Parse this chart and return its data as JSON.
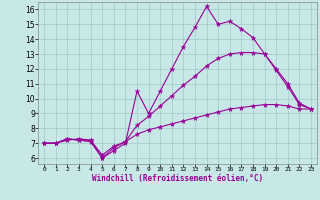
{
  "xlabel": "Windchill (Refroidissement éolien,°C)",
  "background_color": "#c8e8e8",
  "grid_color": "#a0c8c8",
  "line_color": "#990099",
  "x_ticks": [
    0,
    1,
    2,
    3,
    4,
    5,
    6,
    7,
    8,
    9,
    10,
    11,
    12,
    13,
    14,
    15,
    16,
    17,
    18,
    19,
    20,
    21,
    22,
    23
  ],
  "y_ticks": [
    6,
    7,
    8,
    9,
    10,
    11,
    12,
    13,
    14,
    15,
    16
  ],
  "xlim": [
    -0.5,
    23.5
  ],
  "ylim": [
    5.6,
    16.5
  ],
  "line1_y": [
    7.0,
    7.0,
    7.3,
    7.2,
    7.1,
    6.0,
    6.5,
    7.0,
    10.5,
    9.0,
    10.5,
    12.0,
    13.5,
    14.8,
    16.2,
    15.0,
    15.2,
    14.7,
    14.1,
    13.0,
    11.9,
    10.8,
    9.6,
    9.3
  ],
  "line2_y": [
    7.0,
    7.0,
    7.3,
    7.2,
    7.2,
    6.0,
    6.7,
    7.1,
    8.2,
    8.8,
    9.5,
    10.2,
    10.9,
    11.5,
    12.2,
    12.7,
    13.0,
    13.1,
    13.1,
    13.0,
    12.0,
    11.0,
    9.7,
    9.3
  ],
  "line3_y": [
    7.0,
    7.0,
    7.2,
    7.3,
    7.2,
    6.2,
    6.8,
    7.1,
    7.6,
    7.9,
    8.1,
    8.3,
    8.5,
    8.7,
    8.9,
    9.1,
    9.3,
    9.4,
    9.5,
    9.6,
    9.6,
    9.5,
    9.3,
    9.3
  ]
}
